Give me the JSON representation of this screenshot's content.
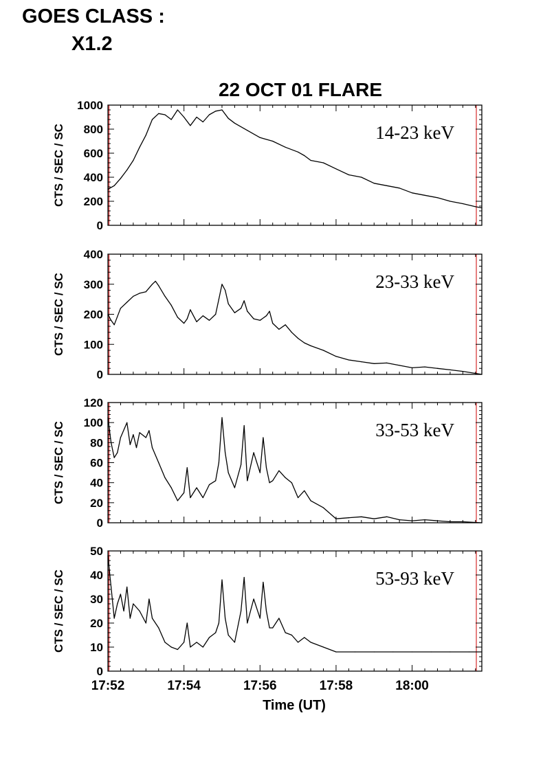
{
  "header": {
    "goes_label": "GOES CLASS :",
    "goes_value": "X1.2"
  },
  "chart_data": [
    {
      "type": "line",
      "title": "22 OCT 01 FLARE",
      "annotation": "14-23 keV",
      "ylabel": "CTS / SEC / SC",
      "xlabel": "",
      "ylim": [
        0,
        1000
      ],
      "yticks": [
        0,
        200,
        400,
        600,
        800,
        1000
      ],
      "xlim": [
        "17:52",
        "18:01:50"
      ],
      "grid": false,
      "series": [
        {
          "x": [
            "17:52:00",
            "17:52:10",
            "17:52:20",
            "17:52:30",
            "17:52:40",
            "17:52:50",
            "17:53:00",
            "17:53:10",
            "17:53:20",
            "17:53:30",
            "17:53:40",
            "17:53:50",
            "17:54:00",
            "17:54:10",
            "17:54:20",
            "17:54:30",
            "17:54:40",
            "17:54:50",
            "17:55:00",
            "17:55:10",
            "17:55:20",
            "17:55:40",
            "17:56:00",
            "17:56:20",
            "17:56:40",
            "17:57:00",
            "17:57:10",
            "17:57:20",
            "17:57:40",
            "17:58:00",
            "17:58:20",
            "17:58:40",
            "17:59:00",
            "17:59:20",
            "17:59:40",
            "18:00:00",
            "18:00:20",
            "18:00:40",
            "18:01:00",
            "18:01:20",
            "18:01:40",
            "18:01:50"
          ],
          "values": [
            300,
            330,
            390,
            460,
            540,
            650,
            750,
            880,
            930,
            920,
            880,
            960,
            900,
            830,
            900,
            860,
            920,
            950,
            960,
            890,
            850,
            790,
            730,
            700,
            650,
            610,
            580,
            540,
            520,
            470,
            420,
            400,
            350,
            330,
            310,
            270,
            250,
            230,
            200,
            180,
            155,
            145
          ]
        }
      ]
    },
    {
      "type": "line",
      "annotation": "23-33 keV",
      "ylabel": "CTS / SEC / SC",
      "xlabel": "",
      "ylim": [
        0,
        400
      ],
      "yticks": [
        0,
        100,
        200,
        300,
        400
      ],
      "xlim": [
        "17:52",
        "18:01:50"
      ],
      "grid": false,
      "series": [
        {
          "x": [
            "17:52:00",
            "17:52:05",
            "17:52:10",
            "17:52:20",
            "17:52:30",
            "17:52:40",
            "17:52:50",
            "17:53:00",
            "17:53:10",
            "17:53:15",
            "17:53:20",
            "17:53:30",
            "17:53:40",
            "17:53:50",
            "17:54:00",
            "17:54:05",
            "17:54:10",
            "17:54:20",
            "17:54:30",
            "17:54:40",
            "17:54:50",
            "17:54:55",
            "17:55:00",
            "17:55:05",
            "17:55:10",
            "17:55:20",
            "17:55:30",
            "17:55:35",
            "17:55:40",
            "17:55:50",
            "17:56:00",
            "17:56:10",
            "17:56:15",
            "17:56:20",
            "17:56:30",
            "17:56:40",
            "17:56:50",
            "17:57:00",
            "17:57:10",
            "17:57:20",
            "17:57:40",
            "17:58:00",
            "17:58:20",
            "17:58:40",
            "17:59:00",
            "17:59:20",
            "17:59:40",
            "18:00:00",
            "18:00:20",
            "18:00:40",
            "18:01:00",
            "18:01:20",
            "18:01:50"
          ],
          "values": [
            200,
            180,
            165,
            220,
            240,
            260,
            270,
            275,
            300,
            310,
            295,
            260,
            230,
            190,
            170,
            185,
            215,
            175,
            195,
            180,
            200,
            250,
            300,
            280,
            235,
            205,
            220,
            245,
            210,
            185,
            180,
            195,
            210,
            170,
            150,
            165,
            140,
            120,
            105,
            95,
            80,
            60,
            48,
            42,
            36,
            38,
            30,
            22,
            25,
            20,
            15,
            10,
            0
          ]
        }
      ]
    },
    {
      "type": "line",
      "annotation": "33-53 keV",
      "ylabel": "CTS / SEC / SC",
      "xlabel": "",
      "ylim": [
        0,
        120
      ],
      "yticks": [
        0,
        20,
        40,
        60,
        80,
        100,
        120
      ],
      "xlim": [
        "17:52",
        "18:01:50"
      ],
      "grid": false,
      "series": [
        {
          "x": [
            "17:52:00",
            "17:52:05",
            "17:52:10",
            "17:52:15",
            "17:52:20",
            "17:52:30",
            "17:52:35",
            "17:52:40",
            "17:52:45",
            "17:52:50",
            "17:53:00",
            "17:53:05",
            "17:53:10",
            "17:53:20",
            "17:53:30",
            "17:53:40",
            "17:53:50",
            "17:54:00",
            "17:54:05",
            "17:54:10",
            "17:54:20",
            "17:54:30",
            "17:54:40",
            "17:54:50",
            "17:54:55",
            "17:55:00",
            "17:55:05",
            "17:55:10",
            "17:55:20",
            "17:55:30",
            "17:55:35",
            "17:55:40",
            "17:55:50",
            "17:56:00",
            "17:56:05",
            "17:56:10",
            "17:56:15",
            "17:56:20",
            "17:56:30",
            "17:56:40",
            "17:56:50",
            "17:57:00",
            "17:57:10",
            "17:57:20",
            "17:57:40",
            "17:58:00",
            "17:58:20",
            "17:58:40",
            "17:59:00",
            "17:59:20",
            "17:59:40",
            "18:00:00",
            "18:00:20",
            "18:00:40",
            "18:01:00",
            "18:01:20",
            "18:01:50"
          ],
          "values": [
            105,
            80,
            65,
            70,
            85,
            100,
            78,
            88,
            75,
            90,
            85,
            92,
            75,
            60,
            45,
            35,
            22,
            30,
            55,
            25,
            35,
            25,
            38,
            42,
            60,
            105,
            70,
            50,
            35,
            58,
            97,
            42,
            70,
            50,
            85,
            55,
            40,
            42,
            52,
            45,
            40,
            25,
            32,
            22,
            15,
            4,
            5,
            6,
            4,
            6,
            3,
            2,
            3,
            2,
            1,
            1,
            0
          ]
        }
      ]
    },
    {
      "type": "line",
      "annotation": "53-93 keV",
      "ylabel": "CTS / SEC / SC",
      "xlabel": "Time (UT)",
      "ylim": [
        0,
        50
      ],
      "yticks": [
        0,
        10,
        20,
        30,
        40,
        50
      ],
      "xlim": [
        "17:52",
        "18:01:50"
      ],
      "xticks": [
        "17:52",
        "17:54",
        "17:56",
        "17:58",
        "18:00"
      ],
      "grid": false,
      "series": [
        {
          "x": [
            "17:52:00",
            "17:52:05",
            "17:52:10",
            "17:52:15",
            "17:52:20",
            "17:52:25",
            "17:52:30",
            "17:52:35",
            "17:52:40",
            "17:52:50",
            "17:53:00",
            "17:53:05",
            "17:53:10",
            "17:53:20",
            "17:53:30",
            "17:53:40",
            "17:53:50",
            "17:54:00",
            "17:54:05",
            "17:54:10",
            "17:54:20",
            "17:54:30",
            "17:54:40",
            "17:54:50",
            "17:54:55",
            "17:55:00",
            "17:55:05",
            "17:55:10",
            "17:55:20",
            "17:55:30",
            "17:55:35",
            "17:55:40",
            "17:55:50",
            "17:56:00",
            "17:56:05",
            "17:56:10",
            "17:56:15",
            "17:56:20",
            "17:56:30",
            "17:56:40",
            "17:56:50",
            "17:57:00",
            "17:57:10",
            "17:57:20",
            "17:57:40",
            "17:58:00",
            "17:58:30",
            "17:59:00",
            "17:59:30",
            "18:00:00",
            "18:00:30",
            "18:01:00",
            "18:01:30",
            "18:01:50"
          ],
          "values": [
            48,
            35,
            22,
            28,
            32,
            25,
            35,
            22,
            28,
            25,
            20,
            30,
            22,
            18,
            12,
            10,
            9,
            12,
            20,
            10,
            12,
            10,
            14,
            16,
            20,
            38,
            22,
            15,
            12,
            25,
            39,
            20,
            30,
            22,
            37,
            25,
            18,
            18,
            22,
            16,
            15,
            12,
            14,
            12,
            10,
            8,
            8,
            8,
            8,
            8,
            8,
            8,
            8,
            8
          ]
        }
      ]
    }
  ]
}
